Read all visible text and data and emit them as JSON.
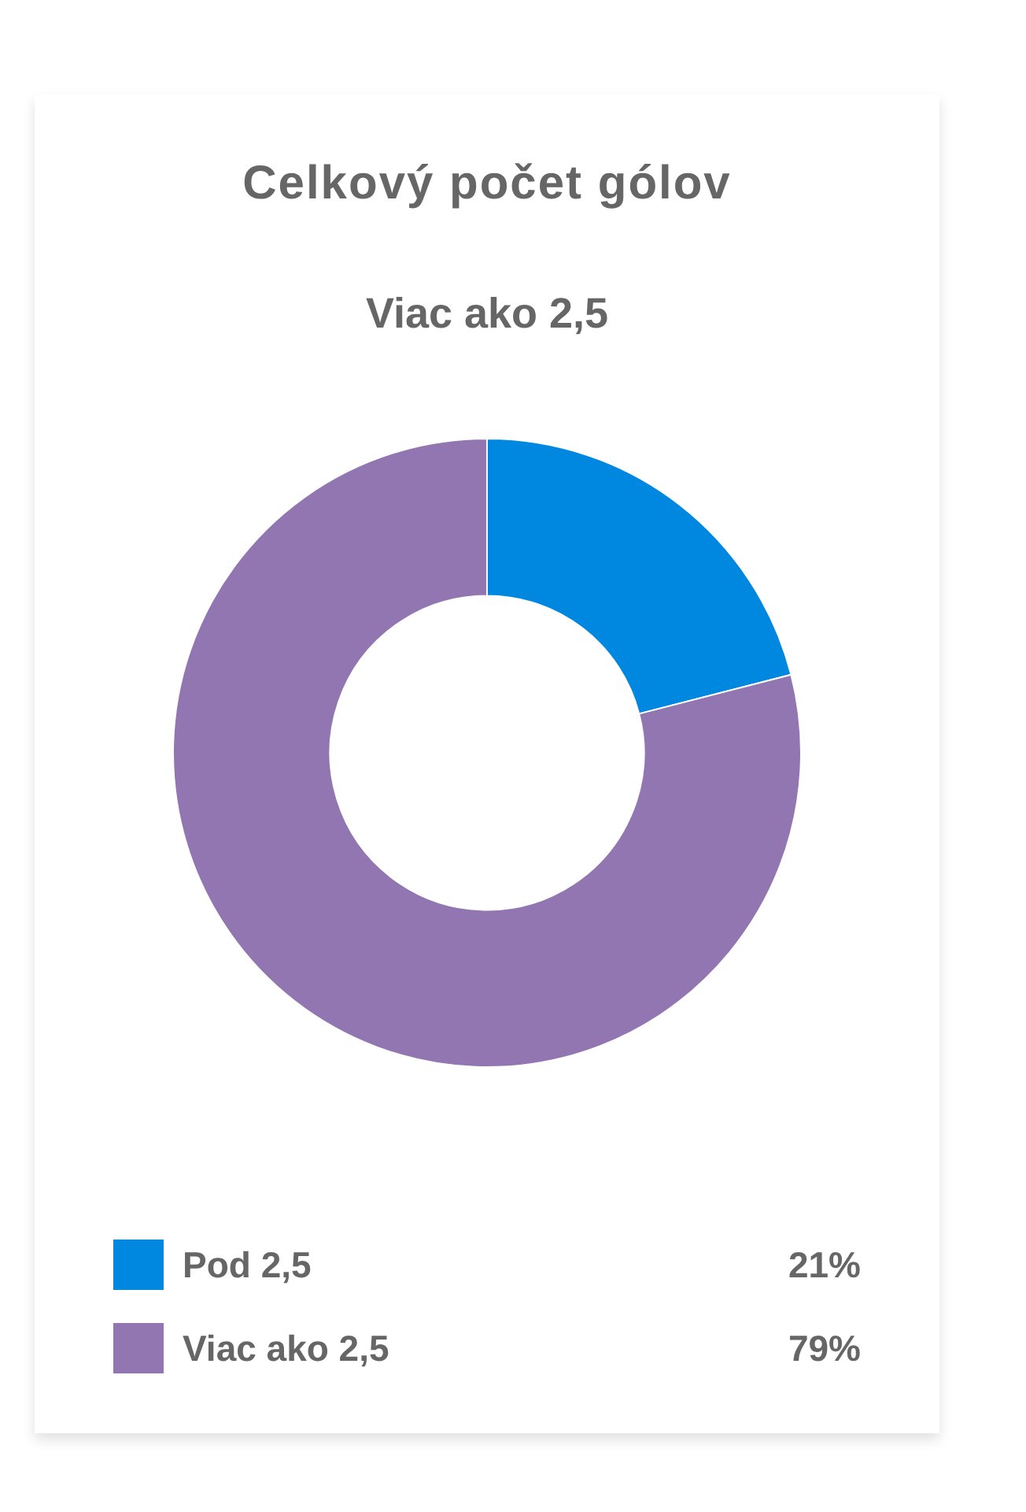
{
  "chart_data": {
    "type": "donut",
    "title": "Celkový počet gólov",
    "subtitle": "Viac ako 2,5",
    "categories": [
      "Pod 2,5",
      "Viac ako 2,5"
    ],
    "values": [
      21,
      79
    ],
    "colors": [
      "#0088e0",
      "#9276b2"
    ],
    "value_labels": [
      "21%",
      "79%"
    ],
    "legend": "bottom"
  }
}
